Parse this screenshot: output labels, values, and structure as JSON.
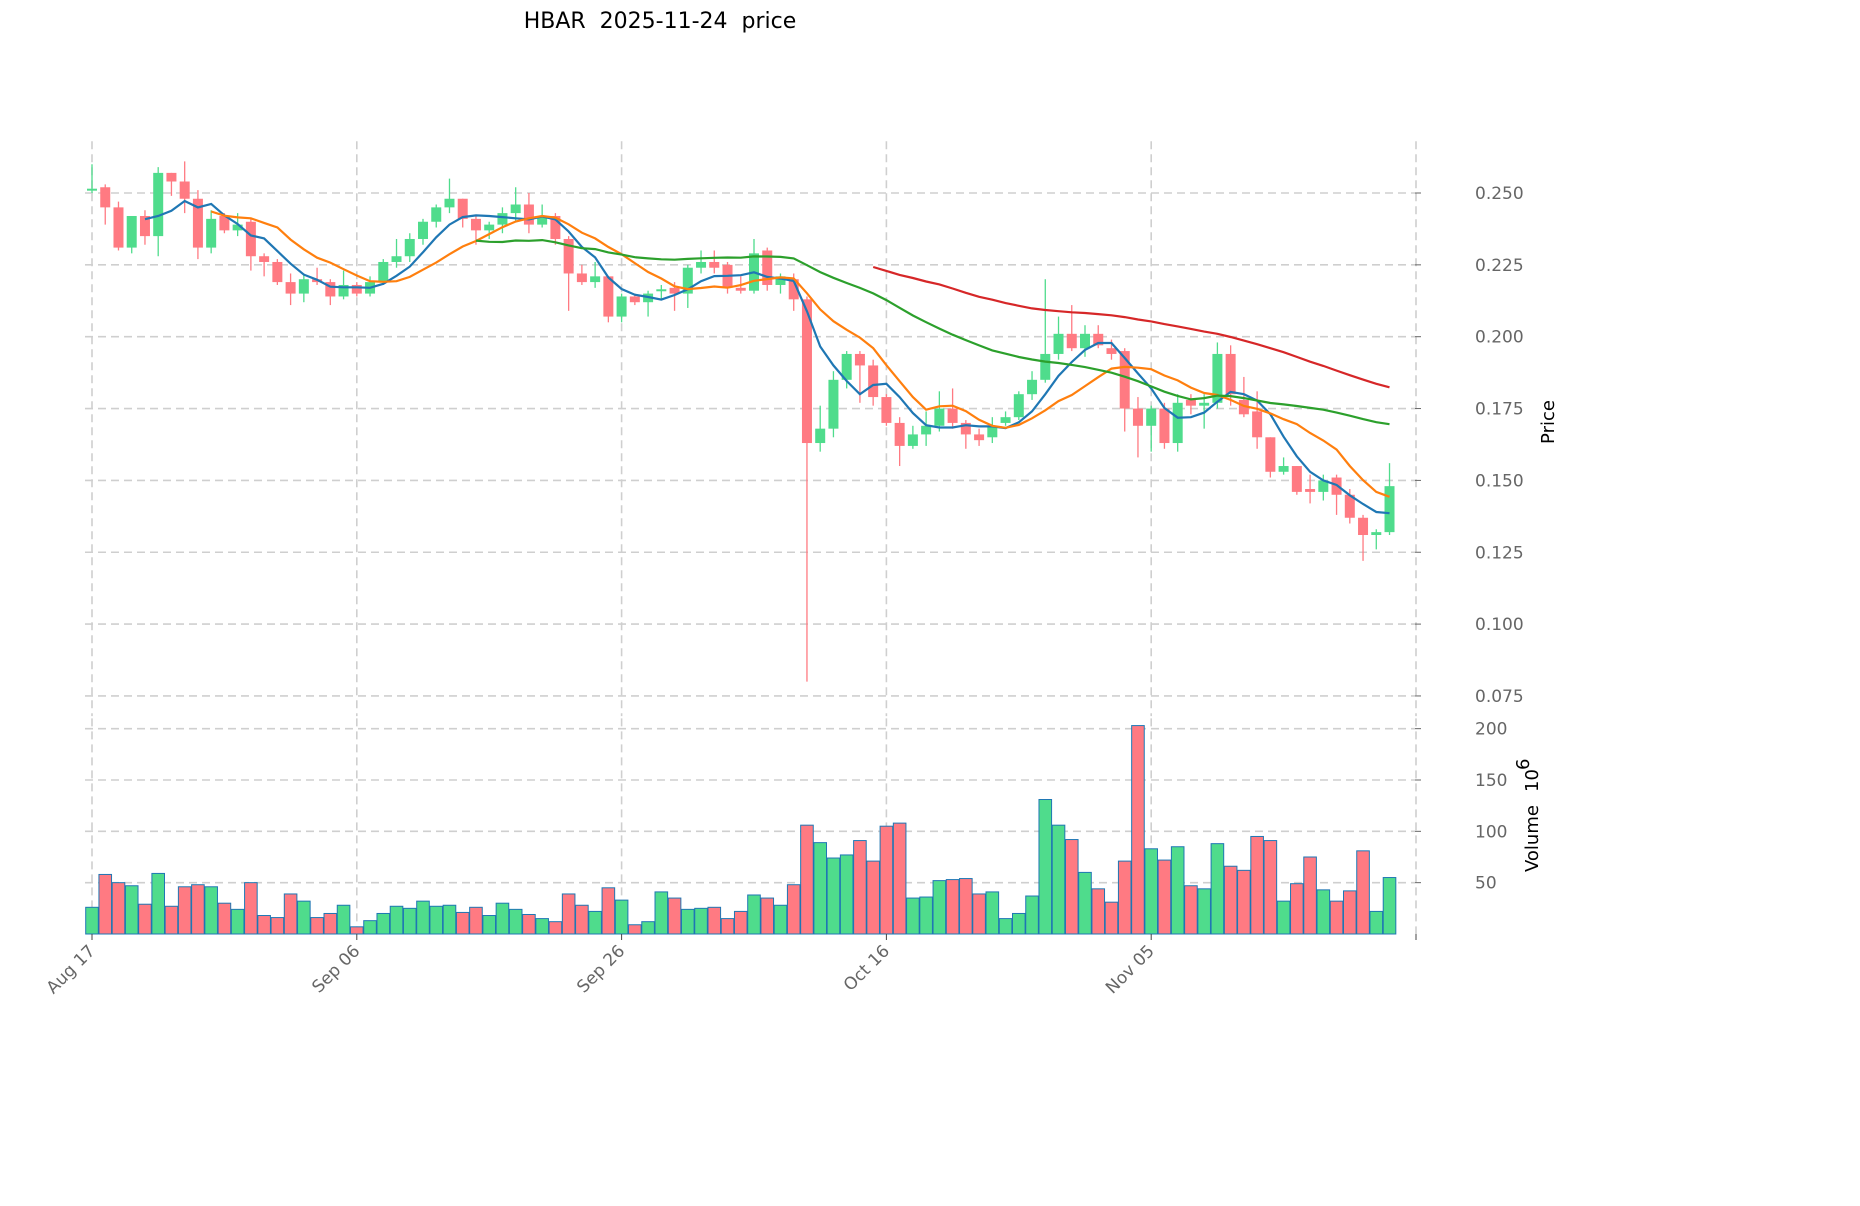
{
  "chart_data": {
    "type": "candlestick",
    "title": "HBAR  2025-11-24  price",
    "ylabel": "Price",
    "volume_label": "Volume",
    "volume_scale_base": "10",
    "volume_scale_exp": "6",
    "ylim": [
      0.068,
      0.268
    ],
    "volume_ylim": [
      0,
      210
    ],
    "yticks": [
      "0.075",
      "0.100",
      "0.125",
      "0.150",
      "0.175",
      "0.200",
      "0.225",
      "0.250"
    ],
    "volume_yticks": [
      "50",
      "100",
      "150",
      "200"
    ],
    "xticks": [
      {
        "index": 0,
        "label": "Aug 17"
      },
      {
        "index": 20,
        "label": "Sep 06"
      },
      {
        "index": 40,
        "label": "Sep 26"
      },
      {
        "index": 60,
        "label": "Oct 16"
      },
      {
        "index": 80,
        "label": "Nov 05"
      },
      {
        "index": 100,
        "label": ""
      }
    ],
    "mav_periods": [
      5,
      10,
      30,
      60
    ],
    "colors": {
      "up": "#4fdc8c",
      "down": "#ff7a82",
      "volume_edge": "#1f77b4",
      "mav": [
        "#1f77b4",
        "#ff7f0e",
        "#2ca02c",
        "#d62728"
      ]
    },
    "open": [
      0.2515,
      0.252,
      0.245,
      0.231,
      0.242,
      0.235,
      0.257,
      0.254,
      0.248,
      0.231,
      0.242,
      0.237,
      0.24,
      0.228,
      0.226,
      0.219,
      0.215,
      0.22,
      0.219,
      0.214,
      0.218,
      0.215,
      0.219,
      0.226,
      0.228,
      0.234,
      0.24,
      0.245,
      0.248,
      0.241,
      0.237,
      0.239,
      0.243,
      0.246,
      0.239,
      0.242,
      0.234,
      0.222,
      0.219,
      0.221,
      0.207,
      0.214,
      0.212,
      0.216,
      0.217,
      0.215,
      0.224,
      0.226,
      0.225,
      0.217,
      0.216,
      0.23,
      0.218,
      0.22,
      0.213,
      0.163,
      0.168,
      0.185,
      0.194,
      0.19,
      0.179,
      0.17,
      0.162,
      0.166,
      0.169,
      0.175,
      0.17,
      0.166,
      0.165,
      0.17,
      0.172,
      0.18,
      0.185,
      0.194,
      0.201,
      0.196,
      0.201,
      0.196,
      0.195,
      0.175,
      0.169,
      0.175,
      0.163,
      0.178,
      0.176,
      0.177,
      0.194,
      0.178,
      0.174,
      0.165,
      0.153,
      0.155,
      0.147,
      0.146,
      0.151,
      0.145,
      0.137,
      0.131,
      0.132
    ],
    "high": [
      0.26,
      0.253,
      0.247,
      0.242,
      0.244,
      0.259,
      0.257,
      0.261,
      0.251,
      0.244,
      0.243,
      0.243,
      0.241,
      0.229,
      0.227,
      0.222,
      0.222,
      0.224,
      0.22,
      0.223,
      0.219,
      0.221,
      0.227,
      0.234,
      0.236,
      0.241,
      0.246,
      0.255,
      0.248,
      0.242,
      0.24,
      0.245,
      0.252,
      0.25,
      0.246,
      0.243,
      0.235,
      0.225,
      0.226,
      0.221,
      0.215,
      0.215,
      0.216,
      0.218,
      0.219,
      0.225,
      0.23,
      0.23,
      0.226,
      0.221,
      0.234,
      0.231,
      0.222,
      0.222,
      0.214,
      0.176,
      0.188,
      0.195,
      0.195,
      0.192,
      0.18,
      0.172,
      0.169,
      0.174,
      0.181,
      0.182,
      0.171,
      0.168,
      0.172,
      0.174,
      0.181,
      0.188,
      0.22,
      0.207,
      0.211,
      0.204,
      0.204,
      0.199,
      0.196,
      0.179,
      0.176,
      0.177,
      0.18,
      0.18,
      0.18,
      0.198,
      0.197,
      0.186,
      0.181,
      0.165,
      0.158,
      0.155,
      0.152,
      0.152,
      0.152,
      0.147,
      0.138,
      0.133,
      0.156
    ],
    "low": [
      0.25,
      0.239,
      0.23,
      0.229,
      0.232,
      0.228,
      0.249,
      0.243,
      0.227,
      0.229,
      0.236,
      0.235,
      0.223,
      0.221,
      0.218,
      0.211,
      0.212,
      0.218,
      0.211,
      0.213,
      0.214,
      0.214,
      0.218,
      0.224,
      0.226,
      0.232,
      0.238,
      0.243,
      0.238,
      0.232,
      0.234,
      0.236,
      0.24,
      0.236,
      0.238,
      0.232,
      0.209,
      0.218,
      0.217,
      0.205,
      0.205,
      0.211,
      0.207,
      0.213,
      0.209,
      0.21,
      0.222,
      0.222,
      0.215,
      0.215,
      0.215,
      0.216,
      0.215,
      0.209,
      0.08,
      0.16,
      0.165,
      0.182,
      0.177,
      0.176,
      0.169,
      0.155,
      0.161,
      0.162,
      0.167,
      0.168,
      0.161,
      0.162,
      0.163,
      0.169,
      0.171,
      0.178,
      0.184,
      0.192,
      0.195,
      0.193,
      0.196,
      0.192,
      0.167,
      0.158,
      0.16,
      0.161,
      0.16,
      0.173,
      0.168,
      0.175,
      0.176,
      0.172,
      0.161,
      0.151,
      0.152,
      0.145,
      0.142,
      0.143,
      0.138,
      0.135,
      0.122,
      0.126,
      0.131
    ],
    "close": [
      0.2515,
      0.245,
      0.231,
      0.242,
      0.235,
      0.257,
      0.254,
      0.248,
      0.231,
      0.241,
      0.237,
      0.239,
      0.228,
      0.226,
      0.219,
      0.215,
      0.22,
      0.219,
      0.214,
      0.218,
      0.215,
      0.219,
      0.226,
      0.228,
      0.234,
      0.24,
      0.245,
      0.248,
      0.241,
      0.237,
      0.239,
      0.243,
      0.246,
      0.239,
      0.242,
      0.234,
      0.222,
      0.219,
      0.221,
      0.207,
      0.214,
      0.212,
      0.215,
      0.2165,
      0.215,
      0.224,
      0.226,
      0.224,
      0.217,
      0.216,
      0.229,
      0.218,
      0.221,
      0.213,
      0.163,
      0.168,
      0.185,
      0.194,
      0.19,
      0.179,
      0.17,
      0.162,
      0.166,
      0.169,
      0.175,
      0.17,
      0.166,
      0.164,
      0.169,
      0.172,
      0.18,
      0.185,
      0.194,
      0.201,
      0.196,
      0.201,
      0.197,
      0.194,
      0.175,
      0.169,
      0.175,
      0.163,
      0.177,
      0.176,
      0.177,
      0.194,
      0.18,
      0.173,
      0.165,
      0.153,
      0.155,
      0.146,
      0.146,
      0.15,
      0.145,
      0.137,
      0.131,
      0.132,
      0.148
    ],
    "volume": [
      26,
      58,
      50,
      47,
      29,
      59,
      27,
      46,
      48,
      46,
      30,
      24,
      50,
      18,
      16,
      39,
      32,
      16,
      20,
      28,
      7,
      13,
      20,
      27,
      25,
      32,
      27,
      28,
      21,
      26,
      18,
      30,
      24,
      19,
      15,
      12,
      39,
      28,
      22,
      45,
      33,
      9,
      12,
      41,
      35,
      24,
      25,
      26,
      15,
      22,
      38,
      35,
      28,
      48,
      106,
      89,
      74,
      77,
      91,
      71,
      105,
      108,
      35,
      36,
      52,
      53,
      54,
      39,
      41,
      15,
      20,
      37,
      131,
      106,
      92,
      60,
      44,
      31,
      71,
      203,
      83,
      72,
      85,
      47,
      44,
      88,
      66,
      62,
      95,
      91,
      32,
      49,
      75,
      43,
      32,
      42,
      81,
      22,
      55
    ]
  }
}
